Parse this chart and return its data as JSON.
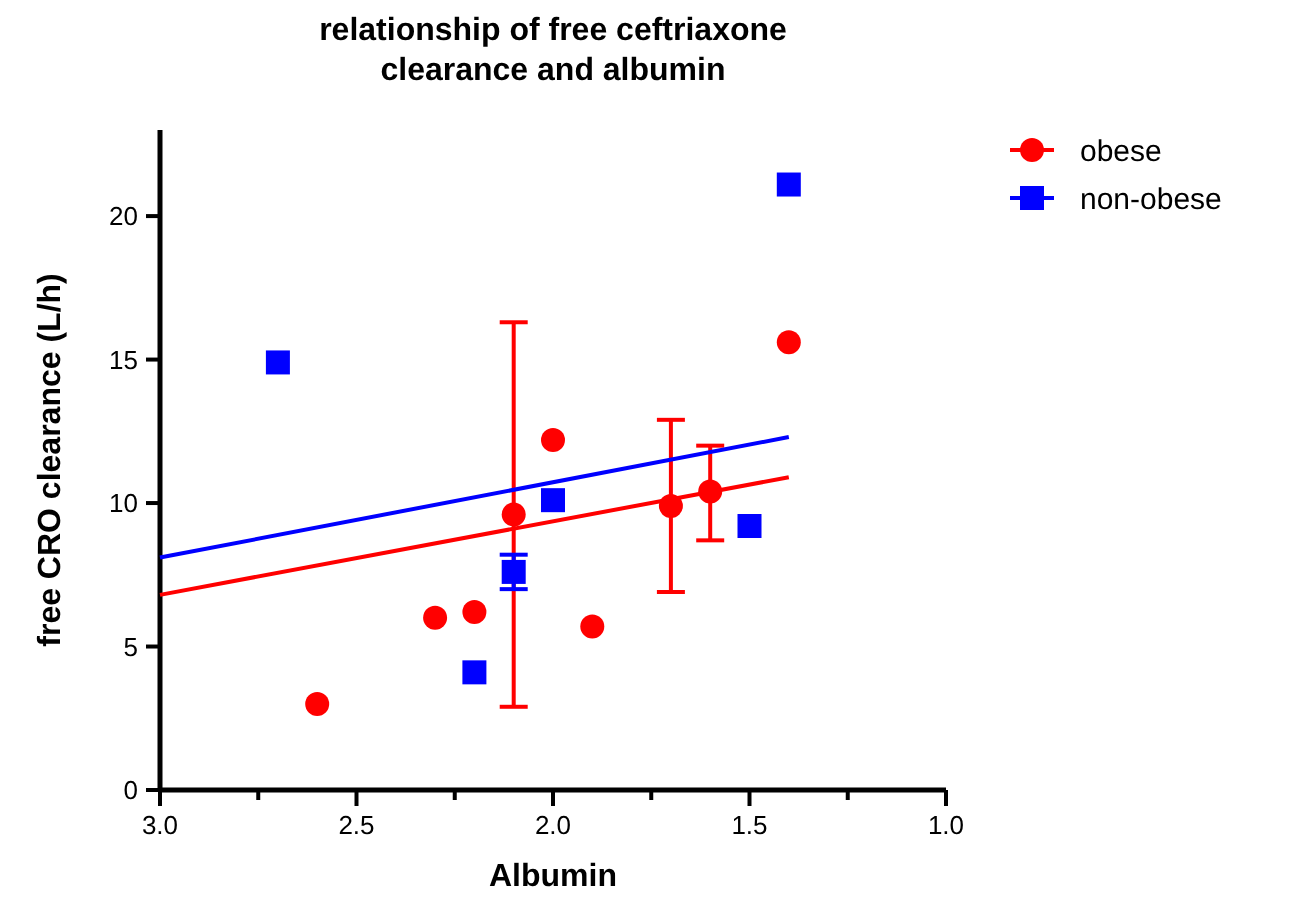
{
  "chart_data": {
    "type": "scatter",
    "title": "relationship of free ceftriaxone clearance and albumin",
    "xlabel": "Albumin",
    "ylabel": "free CRO clearance (L/h)",
    "xlim": [
      3.0,
      1.0
    ],
    "xticks": [
      {
        "value": 3.0,
        "label": "3.0"
      },
      {
        "value": 2.75,
        "label": null
      },
      {
        "value": 2.5,
        "label": "2.5"
      },
      {
        "value": 2.25,
        "label": null
      },
      {
        "value": 2.0,
        "label": "2.0"
      },
      {
        "value": 1.75,
        "label": null
      },
      {
        "value": 1.5,
        "label": "1.5"
      },
      {
        "value": 1.25,
        "label": null
      },
      {
        "value": 1.0,
        "label": "1.0"
      }
    ],
    "ylim": [
      0,
      23
    ],
    "yticks": [
      0,
      5,
      10,
      15,
      20
    ],
    "grid": false,
    "legend": "top right",
    "series": [
      {
        "name": "obese",
        "color": "#ff0000",
        "marker": "circle",
        "x": [
          2.6,
          2.3,
          2.2,
          2.1,
          2.0,
          1.9,
          1.7,
          1.6,
          1.4
        ],
        "values": [
          3.0,
          6.0,
          6.2,
          9.6,
          12.2,
          5.7,
          9.9,
          10.4,
          15.6
        ],
        "errors": [
          null,
          null,
          null,
          [
            2.9,
            16.3
          ],
          null,
          null,
          [
            6.9,
            12.9
          ],
          [
            8.7,
            12.0
          ],
          null
        ]
      },
      {
        "name": "non-obese",
        "color": "#0000ff",
        "marker": "square",
        "x": [
          2.7,
          2.2,
          2.1,
          2.0,
          1.5,
          1.4
        ],
        "values": [
          14.9,
          4.1,
          7.6,
          10.1,
          9.2,
          21.1
        ],
        "errors": [
          null,
          null,
          [
            7.0,
            8.2
          ],
          null,
          null,
          null
        ]
      },
      {
        "type": "line",
        "color": "#ff0000",
        "marker": "none",
        "x": [
          3.0,
          1.4
        ],
        "values": [
          6.8,
          10.9
        ]
      },
      {
        "type": "line",
        "color": "#0000ff",
        "marker": "none",
        "x": [
          3.0,
          1.4
        ],
        "values": [
          8.1,
          12.3
        ]
      }
    ]
  }
}
